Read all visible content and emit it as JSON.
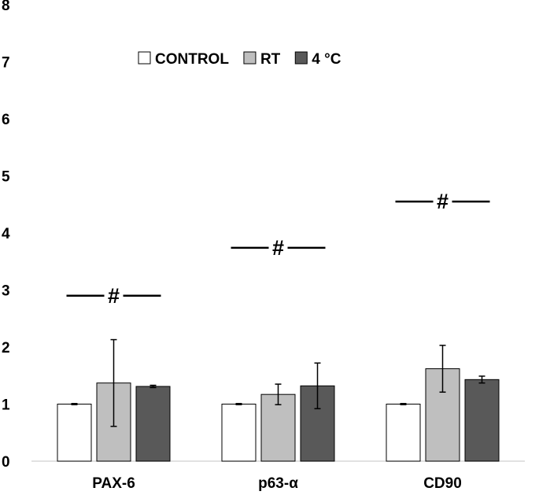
{
  "chart_data": {
    "type": "bar",
    "title": "",
    "xlabel": "",
    "ylabel": "",
    "ylim": [
      0,
      8
    ],
    "yticks": [
      "0",
      "1",
      "2",
      "3",
      "4",
      "5",
      "6",
      "7",
      "8"
    ],
    "grid": false,
    "legend_position": "top-center",
    "categories": [
      "PAX-6",
      "p63-α",
      "CD90"
    ],
    "series": [
      {
        "name": "CONTROL",
        "color": "#ffffff",
        "values": [
          1.0,
          1.0,
          1.0
        ],
        "errors": [
          0.01,
          0.01,
          0.01
        ]
      },
      {
        "name": "RT",
        "color": "#bfbfbf",
        "values": [
          1.37,
          1.17,
          1.62
        ],
        "errors": [
          0.76,
          0.18,
          0.41
        ]
      },
      {
        "name": "4 °C",
        "color": "#595959",
        "values": [
          1.31,
          1.32,
          1.43
        ],
        "errors": [
          0.02,
          0.4,
          0.06
        ]
      }
    ],
    "annotations": [
      {
        "text": "#",
        "category": "PAX-6",
        "y": 2.9
      },
      {
        "text": "#",
        "category": "p63-α",
        "y": 3.74
      },
      {
        "text": "#",
        "category": "CD90",
        "y": 4.55
      }
    ]
  }
}
